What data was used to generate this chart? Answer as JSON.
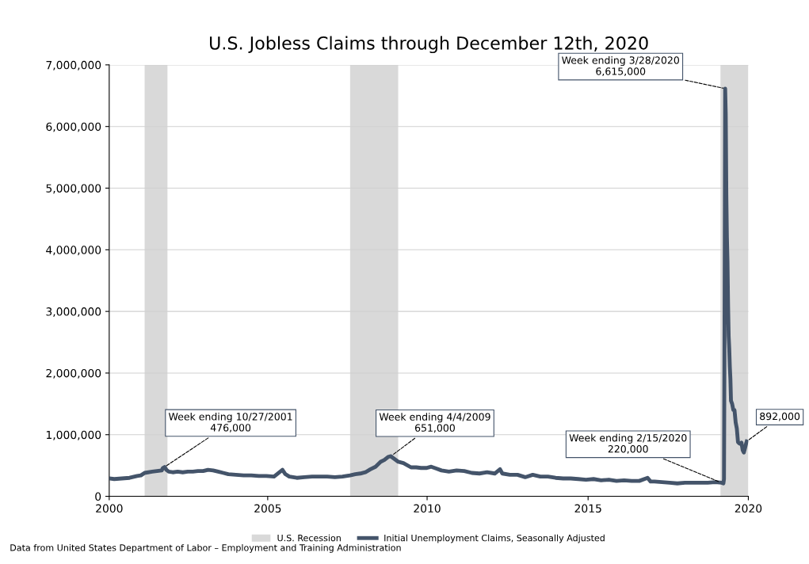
{
  "chart_data": {
    "type": "line",
    "title": "U.S. Jobless Claims through December 12th, 2020",
    "series": [
      {
        "name": "Initial Unemployment Claims, Seasonally Adjusted",
        "color": "#44546a",
        "x": [
          "2000-01-01",
          "2000-03-01",
          "2000-06-01",
          "2000-09-01",
          "2000-12-01",
          "2001-01-15",
          "2001-03-01",
          "2001-06-01",
          "2001-09-22",
          "2001-10-06",
          "2001-10-27",
          "2001-11-17",
          "2001-12-15",
          "2002-02-01",
          "2002-04-01",
          "2002-06-01",
          "2002-08-01",
          "2002-10-01",
          "2002-12-01",
          "2003-02-01",
          "2003-04-01",
          "2003-06-01",
          "2003-08-01",
          "2003-10-01",
          "2003-12-01",
          "2004-03-01",
          "2004-06-01",
          "2004-09-01",
          "2004-12-01",
          "2005-03-01",
          "2005-06-01",
          "2005-09-10",
          "2005-10-15",
          "2005-12-01",
          "2006-03-01",
          "2006-06-01",
          "2006-09-01",
          "2006-12-01",
          "2007-03-01",
          "2007-06-01",
          "2007-09-01",
          "2007-12-01",
          "2008-02-01",
          "2008-04-01",
          "2008-06-01",
          "2008-08-01",
          "2008-10-01",
          "2008-12-01",
          "2009-01-15",
          "2009-03-01",
          "2009-04-04",
          "2009-05-01",
          "2009-07-01",
          "2009-09-01",
          "2009-12-01",
          "2010-02-01",
          "2010-04-01",
          "2010-06-01",
          "2010-08-01",
          "2010-10-01",
          "2010-12-01",
          "2011-03-01",
          "2011-06-01",
          "2011-09-01",
          "2011-12-01",
          "2012-03-01",
          "2012-06-01",
          "2012-09-01",
          "2012-11-03",
          "2012-12-01",
          "2013-03-01",
          "2013-06-01",
          "2013-09-01",
          "2013-12-01",
          "2014-03-01",
          "2014-06-01",
          "2014-09-01",
          "2014-12-01",
          "2015-03-01",
          "2015-06-01",
          "2015-09-01",
          "2015-12-01",
          "2016-03-01",
          "2016-06-01",
          "2016-09-01",
          "2016-12-01",
          "2017-03-01",
          "2017-06-01",
          "2017-09-09",
          "2017-10-15",
          "2017-12-01",
          "2018-03-01",
          "2018-06-01",
          "2018-09-01",
          "2018-12-01",
          "2019-03-01",
          "2019-06-01",
          "2019-09-01",
          "2019-12-01",
          "2020-02-15",
          "2020-03-07",
          "2020-03-14",
          "2020-03-21",
          "2020-03-28",
          "2020-04-04",
          "2020-04-11",
          "2020-04-18",
          "2020-04-25",
          "2020-05-02",
          "2020-05-09",
          "2020-05-16",
          "2020-05-23",
          "2020-05-30",
          "2020-06-06",
          "2020-06-20",
          "2020-07-04",
          "2020-07-18",
          "2020-08-01",
          "2020-08-15",
          "2020-08-29",
          "2020-09-12",
          "2020-09-26",
          "2020-10-10",
          "2020-10-24",
          "2020-11-07",
          "2020-11-21",
          "2020-12-05",
          "2020-12-12"
        ],
        "values": [
          290000,
          280000,
          290000,
          300000,
          330000,
          340000,
          380000,
          400000,
          420000,
          460000,
          476000,
          430000,
          400000,
          390000,
          400000,
          390000,
          400000,
          400000,
          410000,
          410000,
          430000,
          420000,
          400000,
          380000,
          360000,
          350000,
          340000,
          340000,
          330000,
          330000,
          320000,
          430000,
          360000,
          320000,
          300000,
          310000,
          320000,
          320000,
          320000,
          310000,
          320000,
          340000,
          360000,
          370000,
          390000,
          440000,
          480000,
          560000,
          590000,
          640000,
          651000,
          620000,
          560000,
          540000,
          470000,
          470000,
          460000,
          460000,
          480000,
          450000,
          420000,
          400000,
          420000,
          410000,
          380000,
          370000,
          390000,
          370000,
          440000,
          370000,
          350000,
          350000,
          310000,
          350000,
          320000,
          320000,
          300000,
          290000,
          290000,
          280000,
          270000,
          280000,
          260000,
          270000,
          250000,
          260000,
          250000,
          250000,
          300000,
          240000,
          240000,
          230000,
          220000,
          210000,
          220000,
          220000,
          220000,
          220000,
          230000,
          220000,
          210000,
          280000,
          2900000,
          6615000,
          6200000,
          4900000,
          4200000,
          3800000,
          3100000,
          2600000,
          2400000,
          2100000,
          1900000,
          1550000,
          1500000,
          1400000,
          1400000,
          1200000,
          1100000,
          880000,
          860000,
          850000,
          870000,
          750000,
          710000,
          780000,
          860000,
          892000
        ]
      }
    ],
    "bands": [
      {
        "axis": "x",
        "from": "2001-03-01",
        "to": "2001-11-30",
        "label": "U.S. Recession",
        "color": "#d9d9d9"
      },
      {
        "axis": "x",
        "from": "2007-12-01",
        "to": "2009-06-30",
        "color": "#d9d9d9"
      },
      {
        "axis": "x",
        "from": "2020-02-01",
        "to": "2020-12-31",
        "color": "#d9d9d9"
      }
    ],
    "xlim": [
      "2000-01-01",
      "2020-12-31"
    ],
    "xticks": [
      {
        "value": "2000-01-01",
        "label": "2000"
      },
      {
        "value": "2005-03-17",
        "label": "2005"
      },
      {
        "value": "2010-06-12",
        "label": "2010"
      },
      {
        "value": "2015-09-26",
        "label": "2015"
      },
      {
        "value": "2020-12-31",
        "label": "2020"
      }
    ],
    "ylim": [
      0,
      7000000
    ],
    "yticks": [
      {
        "value": 0,
        "label": "0"
      },
      {
        "value": 1000000,
        "label": "1,000,000"
      },
      {
        "value": 2000000,
        "label": "2,000,000"
      },
      {
        "value": 3000000,
        "label": "3,000,000"
      },
      {
        "value": 4000000,
        "label": "4,000,000"
      },
      {
        "value": 5000000,
        "label": "5,000,000"
      },
      {
        "value": 6000000,
        "label": "6,000,000"
      },
      {
        "value": 7000000,
        "label": "7,000,000"
      }
    ],
    "grid": "y",
    "legend": "bottom",
    "annotations": [
      {
        "text": "Week ending 10/27/2001\n476,000",
        "x": "2001-10-27",
        "y": 476000
      },
      {
        "text": "Week ending 4/4/2009\n651,000",
        "x": "2009-04-04",
        "y": 651000
      },
      {
        "text": "Week ending 2/15/2020\n220,000",
        "x": "2020-02-15",
        "y": 220000
      },
      {
        "text": "Week ending 3/28/2020\n6,615,000",
        "x": "2020-03-28",
        "y": 6615000
      },
      {
        "text": "892,000",
        "x": "2020-12-12",
        "y": 892000
      },
      "Data from United States Department of Labor – Employment and Training Administration"
    ]
  }
}
